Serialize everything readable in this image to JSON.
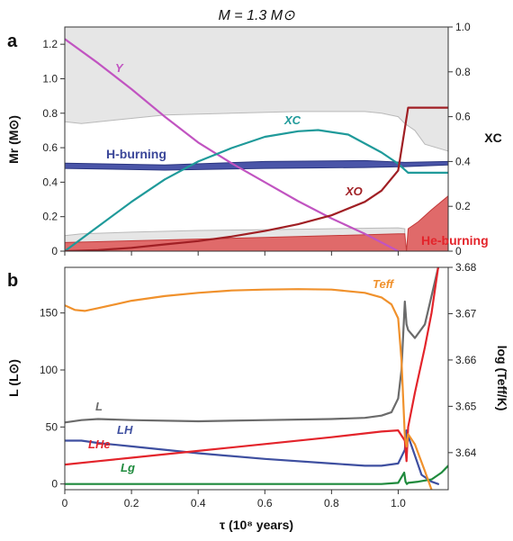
{
  "figure_title": "M = 1.3 M⊙",
  "chart_data": [
    {
      "panel_label": "a",
      "type": "line",
      "xlabel": "",
      "ylabel": "Mr (M⊙)",
      "ylabel_right": "XC",
      "xlim": [
        0,
        1.15
      ],
      "ylim": [
        0,
        1.3
      ],
      "ylim_right": [
        0,
        1.0
      ],
      "y_ticks": [
        "0",
        "0.2",
        "0.4",
        "0.6",
        "0.8",
        "1.0",
        "1.2"
      ],
      "y_right_ticks": [
        "0",
        "0.2",
        "0.4",
        "0.6",
        "0.8",
        "1.0"
      ],
      "grid": false,
      "annotations": {
        "Y": "Y",
        "XC": "XC",
        "XO": "XO",
        "h_burning": "H-burning",
        "he_burning": "He-burning"
      },
      "colors": {
        "convective": "#e6e6e6",
        "h_burning": "#4a55a8",
        "he_burning": "#e06a6a",
        "Y": "#c154c1",
        "XC": "#1f9a9a",
        "XO": "#a01f24"
      },
      "regions": [
        {
          "kind": "convective_envelope",
          "lower_Mr": [
            [
              0,
              0.75
            ],
            [
              0.05,
              0.74
            ],
            [
              0.15,
              0.76
            ],
            [
              0.3,
              0.79
            ],
            [
              0.5,
              0.8
            ],
            [
              0.7,
              0.81
            ],
            [
              0.9,
              0.81
            ],
            [
              0.95,
              0.8
            ],
            [
              1.0,
              0.78
            ],
            [
              1.02,
              0.74
            ],
            [
              1.05,
              0.7
            ],
            [
              1.08,
              0.62
            ],
            [
              1.15,
              0.58
            ]
          ],
          "upper_Mr": 1.3
        },
        {
          "kind": "convective_core",
          "upper_Mr": [
            [
              0,
              0.09
            ],
            [
              0.05,
              0.1
            ],
            [
              0.2,
              0.11
            ],
            [
              0.4,
              0.12
            ],
            [
              0.6,
              0.125
            ],
            [
              0.8,
              0.13
            ],
            [
              1.0,
              0.135
            ],
            [
              1.02,
              0.13
            ]
          ],
          "lower_Mr": 0
        },
        {
          "kind": "H-burning",
          "lower_Mr": [
            [
              0,
              0.48
            ],
            [
              0.3,
              0.47
            ],
            [
              0.6,
              0.48
            ],
            [
              0.9,
              0.485
            ],
            [
              1.02,
              0.49
            ],
            [
              1.15,
              0.5
            ]
          ],
          "upper_Mr": [
            [
              0,
              0.51
            ],
            [
              0.3,
              0.5
            ],
            [
              0.6,
              0.52
            ],
            [
              0.9,
              0.525
            ],
            [
              1.02,
              0.515
            ],
            [
              1.15,
              0.52
            ]
          ]
        },
        {
          "kind": "He-burning",
          "upper_Mr": [
            [
              0,
              0.05
            ],
            [
              0.2,
              0.06
            ],
            [
              0.4,
              0.07
            ],
            [
              0.6,
              0.08
            ],
            [
              0.8,
              0.09
            ],
            [
              1.0,
              0.1
            ],
            [
              1.02,
              0.1
            ],
            [
              1.025,
              0.0
            ],
            [
              1.03,
              0.13
            ],
            [
              1.06,
              0.17
            ],
            [
              1.1,
              0.24
            ],
            [
              1.15,
              0.32
            ]
          ],
          "lower_Mr": 0
        }
      ],
      "series": [
        {
          "name": "Y",
          "axis": "left",
          "x": [
            0,
            0.1,
            0.2,
            0.3,
            0.4,
            0.5,
            0.6,
            0.7,
            0.8,
            0.9,
            0.95,
            1.0
          ],
          "y": [
            1.23,
            1.09,
            0.94,
            0.78,
            0.63,
            0.51,
            0.4,
            0.29,
            0.19,
            0.1,
            0.05,
            0.0
          ]
        },
        {
          "name": "XC",
          "axis": "right",
          "x": [
            0,
            0.1,
            0.2,
            0.3,
            0.4,
            0.5,
            0.6,
            0.7,
            0.76,
            0.85,
            0.95,
            1.0,
            1.03,
            1.15
          ],
          "y": [
            0.0,
            0.11,
            0.22,
            0.32,
            0.4,
            0.46,
            0.51,
            0.535,
            0.54,
            0.52,
            0.44,
            0.39,
            0.35,
            0.35
          ]
        },
        {
          "name": "XO",
          "axis": "right",
          "x": [
            0,
            0.1,
            0.2,
            0.3,
            0.4,
            0.5,
            0.6,
            0.7,
            0.8,
            0.9,
            0.95,
            1.0,
            1.03,
            1.15
          ],
          "y": [
            0.0,
            0.005,
            0.015,
            0.03,
            0.045,
            0.065,
            0.09,
            0.12,
            0.16,
            0.22,
            0.27,
            0.36,
            0.64,
            0.64
          ]
        }
      ]
    },
    {
      "panel_label": "b",
      "type": "line",
      "xlabel": "τ (10⁸ years)",
      "ylabel": "L (L⊙)",
      "ylabel_right": "log (Teff/K)",
      "xlim": [
        0,
        1.15
      ],
      "ylim": [
        -5,
        190
      ],
      "ylim_right": [
        3.632,
        3.68
      ],
      "x_ticks": [
        "0",
        "0.2",
        "0.4",
        "0.6",
        "0.8",
        "1.0"
      ],
      "y_ticks": [
        "0",
        "50",
        "100",
        "150"
      ],
      "y_right_ticks": [
        "3.64",
        "3.65",
        "3.66",
        "3.67",
        "3.68"
      ],
      "grid": false,
      "annotations": {
        "L": "L",
        "LH": "LH",
        "LHe": "LHe",
        "Lg": "Lg",
        "Teff": "Teff"
      },
      "colors": {
        "L": "#6b6b6b",
        "LH": "#3e4fa0",
        "LHe": "#e3242b",
        "Lg": "#1e8a3c",
        "Teff": "#f0912c"
      },
      "series": [
        {
          "name": "L",
          "axis": "left",
          "x": [
            0,
            0.05,
            0.1,
            0.2,
            0.4,
            0.6,
            0.8,
            0.9,
            0.95,
            0.98,
            1.0,
            1.01,
            1.02,
            1.025,
            1.03,
            1.05,
            1.08,
            1.1,
            1.12
          ],
          "y": [
            54,
            56,
            57,
            56,
            55,
            56,
            57,
            58,
            60,
            63,
            75,
            100,
            160,
            140,
            135,
            128,
            140,
            165,
            190
          ]
        },
        {
          "name": "LH",
          "axis": "left",
          "x": [
            0,
            0.05,
            0.1,
            0.2,
            0.4,
            0.6,
            0.8,
            0.9,
            0.95,
            1.0,
            1.02,
            1.025,
            1.03,
            1.05,
            1.07,
            1.1,
            1.12
          ],
          "y": [
            38,
            38,
            36,
            33,
            27,
            22,
            18,
            16,
            16,
            18,
            30,
            47,
            42,
            25,
            8,
            2,
            0
          ]
        },
        {
          "name": "LHe",
          "axis": "left",
          "x": [
            0,
            0.1,
            0.2,
            0.4,
            0.6,
            0.8,
            0.95,
            1.0,
            1.02,
            1.025,
            1.03,
            1.05,
            1.08,
            1.1,
            1.12
          ],
          "y": [
            17,
            20,
            23,
            29,
            35,
            41,
            46,
            47,
            38,
            20,
            50,
            80,
            120,
            150,
            190
          ]
        },
        {
          "name": "Lg",
          "axis": "left",
          "x": [
            0,
            0.2,
            0.4,
            0.6,
            0.8,
            0.95,
            1.0,
            1.018,
            1.022,
            1.026,
            1.03,
            1.06,
            1.1,
            1.13,
            1.15
          ],
          "y": [
            0,
            0,
            0,
            0,
            0,
            0,
            1,
            10,
            2,
            0,
            1,
            2,
            4,
            10,
            16
          ]
        },
        {
          "name": "Teff",
          "axis": "right",
          "x": [
            0,
            0.03,
            0.06,
            0.1,
            0.2,
            0.3,
            0.4,
            0.5,
            0.6,
            0.7,
            0.8,
            0.9,
            0.95,
            0.98,
            1.0,
            1.01,
            1.02,
            1.025,
            1.03,
            1.05,
            1.08,
            1.1
          ],
          "y": [
            3.6718,
            3.6708,
            3.6706,
            3.6712,
            3.6728,
            3.6738,
            3.6745,
            3.675,
            3.6752,
            3.6753,
            3.6752,
            3.6745,
            3.6735,
            3.672,
            3.669,
            3.66,
            3.6436,
            3.6413,
            3.644,
            3.6418,
            3.636,
            3.632
          ]
        }
      ]
    }
  ]
}
